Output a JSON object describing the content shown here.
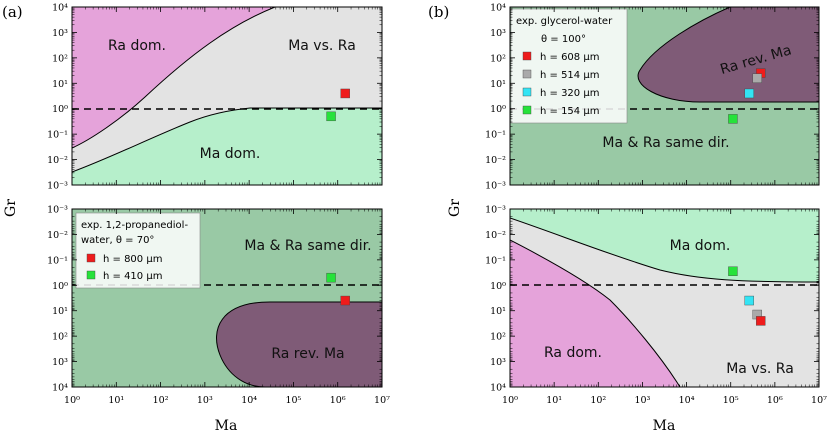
{
  "chart_data": {
    "type": "phase-diagram",
    "colors": {
      "ra_dom": "#e5a3da",
      "ma_vs_ra": "#e3e3e3",
      "ma_dom": "#b6efcb",
      "same_dir": "#99c9a5",
      "ra_rev": "#7f5b77",
      "red": "#ee1c1c",
      "green": "#26e23a",
      "cyan": "#33e4f4",
      "gray": "#aaaaaa"
    },
    "panels": [
      {
        "label": "(a)",
        "xlabel": "Ma",
        "ylabel": "Gr",
        "xlim_exp": [
          0,
          7
        ],
        "x_tick_labels": [
          "10⁰",
          "10¹",
          "10²",
          "10³",
          "10⁴",
          "10⁵",
          "10⁶",
          "10⁷"
        ],
        "top": {
          "ylim_exp": [
            -3,
            4
          ],
          "y_tick_labels": [
            "10⁴",
            "10³",
            "10²",
            "10¹",
            "10⁰",
            "10⁻¹",
            "10⁻²",
            "10⁻³"
          ],
          "region_labels": [
            "Ra dom.",
            "Ma vs. Ra",
            "Ma dom."
          ],
          "points": [
            {
              "log_ma": 6.17,
              "log_gr": 0.6,
              "color": "red"
            },
            {
              "log_ma": 5.85,
              "log_gr": -0.3,
              "color": "green"
            }
          ]
        },
        "bottom": {
          "ylim_exp": [
            -3,
            4
          ],
          "y_tick_labels": [
            "10⁻³",
            "10⁻²",
            "10⁻¹",
            "10⁰",
            "10¹",
            "10²",
            "10³",
            "10⁴"
          ],
          "region_labels": [
            "Ma & Ra same dir.",
            "Ra rev. Ma"
          ],
          "points": [
            {
              "log_ma": 5.85,
              "log_gr_neg": -0.3,
              "color": "green"
            },
            {
              "log_ma": 6.17,
              "log_gr_neg": 0.6,
              "color": "red"
            }
          ],
          "legend": {
            "title_line1": "exp. 1,2-propanediol-",
            "title_line2": "water, θ = 70°",
            "entries": [
              {
                "label": "h = 800 μm",
                "color": "red"
              },
              {
                "label": "h = 410 μm",
                "color": "green"
              }
            ]
          }
        }
      },
      {
        "label": "(b)",
        "xlabel": "Ma",
        "ylabel": "Gr",
        "xlim_exp": [
          0,
          7
        ],
        "x_tick_labels": [
          "10⁰",
          "10¹",
          "10²",
          "10³",
          "10⁴",
          "10⁵",
          "10⁶",
          "10⁷"
        ],
        "top": {
          "ylim_exp": [
            -3,
            4
          ],
          "y_tick_labels": [
            "10⁴",
            "10³",
            "10²",
            "10¹",
            "10⁰",
            "10⁻¹",
            "10⁻²",
            "10⁻³"
          ],
          "region_labels": [
            "Ra rev. Ma",
            "Ma & Ra same dir."
          ],
          "points": [
            {
              "log_ma": 5.68,
              "log_gr": 1.4,
              "color": "red"
            },
            {
              "log_ma": 5.6,
              "log_gr": 1.2,
              "color": "gray"
            },
            {
              "log_ma": 5.42,
              "log_gr": 0.6,
              "color": "cyan"
            },
            {
              "log_ma": 5.05,
              "log_gr": -0.4,
              "color": "green"
            }
          ],
          "legend": {
            "title_line1": "exp. glycerol-water",
            "title_line2": "θ = 100°",
            "entries": [
              {
                "label": "h = 608 μm",
                "color": "red"
              },
              {
                "label": "h = 514 μm",
                "color": "gray"
              },
              {
                "label": "h = 320 μm",
                "color": "cyan"
              },
              {
                "label": "h = 154 μm",
                "color": "green"
              }
            ]
          }
        },
        "bottom": {
          "ylim_exp": [
            -3,
            4
          ],
          "y_tick_labels": [
            "10⁻³",
            "10⁻²",
            "10⁻¹",
            "10⁰",
            "10¹",
            "10²",
            "10³",
            "10⁴"
          ],
          "region_labels": [
            "Ma dom.",
            "Ra dom.",
            "Ma vs. Ra"
          ],
          "points": [
            {
              "log_ma": 5.05,
              "log_gr_neg": -0.55,
              "color": "green"
            },
            {
              "log_ma": 5.42,
              "log_gr_neg": 0.6,
              "color": "cyan"
            },
            {
              "log_ma": 5.6,
              "log_gr_neg": 1.15,
              "color": "gray"
            },
            {
              "log_ma": 5.68,
              "log_gr_neg": 1.4,
              "color": "red"
            }
          ]
        }
      }
    ]
  }
}
